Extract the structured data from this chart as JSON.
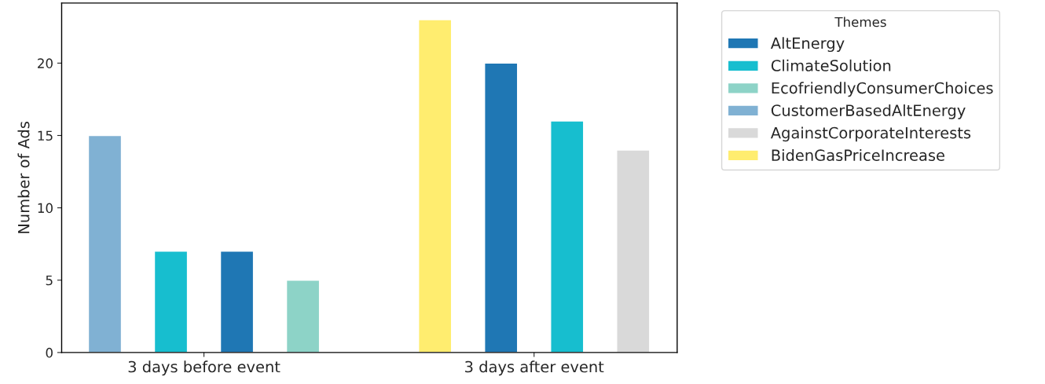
{
  "chart_data": {
    "type": "bar",
    "ylabel": "Number of Ads",
    "legend_title": "Themes",
    "legend": "right",
    "grid": false,
    "categories": [
      null,
      null,
      null,
      null,
      null,
      null,
      null,
      null,
      null
    ],
    "annotations": [
      "3 days before event",
      "3 days after event"
    ],
    "ylim": [
      0,
      24.15
    ],
    "yticks": [
      0,
      5,
      10,
      15,
      20
    ],
    "series": [
      {
        "name": "AltEnergy",
        "color": "#1f77b4",
        "values": [
          null,
          null,
          7,
          null,
          null,
          null,
          20,
          null,
          null
        ]
      },
      {
        "name": "ClimateSolution",
        "color": "#17becf",
        "values": [
          null,
          7,
          null,
          null,
          null,
          null,
          null,
          16,
          null
        ]
      },
      {
        "name": "EcofriendlyConsumerChoices",
        "color": "#8dd3c7",
        "values": [
          null,
          null,
          null,
          5,
          null,
          null,
          null,
          null,
          null
        ]
      },
      {
        "name": "CustomerBasedAltEnergy",
        "color": "#80b1d3",
        "values": [
          15,
          null,
          null,
          null,
          null,
          null,
          null,
          null,
          null
        ]
      },
      {
        "name": "AgainstCorporateInterests",
        "color": "#d9d9d9",
        "values": [
          null,
          null,
          null,
          null,
          null,
          null,
          null,
          null,
          14
        ]
      },
      {
        "name": "BidenGasPriceIncrease",
        "color": "#ffed6f",
        "values": [
          null,
          null,
          null,
          null,
          null,
          23,
          null,
          null,
          null
        ]
      }
    ]
  }
}
